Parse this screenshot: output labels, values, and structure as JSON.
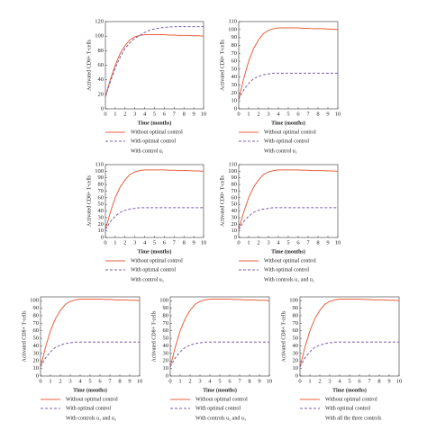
{
  "chart_data": [
    {
      "type": "line",
      "xlabel": "Time (months)",
      "ylabel": "Activated CD8+ T-cells",
      "caption": "With control u₁",
      "xlim": [
        0,
        10
      ],
      "xticks": [
        0,
        1,
        2,
        3,
        4,
        5,
        6,
        7,
        8,
        9,
        10
      ],
      "ylim": [
        0,
        120
      ],
      "yticks": [
        0,
        20,
        40,
        60,
        80,
        100,
        120
      ],
      "x": [
        0,
        0.5,
        1,
        1.5,
        2,
        2.5,
        3,
        3.5,
        4,
        4.5,
        5,
        5.5,
        6,
        6.5,
        7,
        7.5,
        8,
        8.5,
        9,
        9.5,
        10
      ],
      "series": [
        {
          "name": "Without optimal control",
          "color": "#e8603c",
          "line_style": "solid",
          "values": [
            17,
            40,
            60,
            76,
            87,
            95,
            99,
            101,
            102,
            102,
            102,
            102,
            102,
            101.5,
            101.5,
            101,
            101,
            101,
            100.5,
            100.5,
            100
          ]
        },
        {
          "name": "With optimal control",
          "color": "#7b5ea7",
          "line_style": "dashed",
          "values": [
            17,
            37,
            56,
            71,
            83,
            91,
            97,
            101,
            105,
            108,
            110,
            111,
            112,
            112.5,
            113,
            113,
            113,
            113,
            113,
            113,
            113
          ]
        }
      ]
    },
    {
      "type": "line",
      "xlabel": "Time (months)",
      "ylabel": "Activated CD8+ T-cells",
      "caption": "With control u₂",
      "xlim": [
        0,
        10
      ],
      "xticks": [
        0,
        1,
        2,
        3,
        4,
        5,
        6,
        7,
        8,
        9,
        10
      ],
      "ylim": [
        0,
        110
      ],
      "yticks": [
        0,
        10,
        20,
        30,
        40,
        50,
        60,
        70,
        80,
        90,
        100,
        110
      ],
      "x": [
        0,
        0.5,
        1,
        1.5,
        2,
        2.5,
        3,
        3.5,
        4,
        4.5,
        5,
        5.5,
        6,
        6.5,
        7,
        7.5,
        8,
        8.5,
        9,
        9.5,
        10
      ],
      "series": [
        {
          "name": "Without optimal control",
          "color": "#e8603c",
          "line_style": "solid",
          "values": [
            12,
            38,
            60,
            76,
            87,
            95,
            99,
            101,
            102,
            102,
            102,
            102,
            102,
            101.5,
            101.5,
            101,
            101,
            101,
            100.5,
            100.5,
            100
          ]
        },
        {
          "name": "With optimal control",
          "color": "#7b5ea7",
          "line_style": "dashed",
          "values": [
            12,
            24,
            32,
            38,
            41,
            43,
            44,
            45,
            45,
            45,
            45,
            45,
            45,
            45,
            45,
            45,
            45,
            45,
            45,
            45,
            45
          ]
        }
      ]
    },
    {
      "type": "line",
      "xlabel": "Time (months)",
      "ylabel": "Activated CD8+ T-cells",
      "caption": "With control u₃",
      "xlim": [
        0,
        10
      ],
      "xticks": [
        0,
        1,
        2,
        3,
        4,
        5,
        6,
        7,
        8,
        9,
        10
      ],
      "ylim": [
        0,
        110
      ],
      "yticks": [
        0,
        10,
        20,
        30,
        40,
        50,
        60,
        70,
        80,
        90,
        100,
        110
      ],
      "x": [
        0,
        0.5,
        1,
        1.5,
        2,
        2.5,
        3,
        3.5,
        4,
        4.5,
        5,
        5.5,
        6,
        6.5,
        7,
        7.5,
        8,
        8.5,
        9,
        9.5,
        10
      ],
      "series": [
        {
          "name": "Without optimal control",
          "color": "#e8603c",
          "line_style": "solid",
          "values": [
            12,
            38,
            60,
            76,
            87,
            95,
            99,
            101,
            102,
            102,
            102,
            102,
            102,
            101.5,
            101.5,
            101,
            101,
            101,
            100.5,
            100.5,
            100
          ]
        },
        {
          "name": "With optimal control",
          "color": "#7b5ea7",
          "line_style": "dashed",
          "values": [
            12,
            24,
            32,
            38,
            41,
            43,
            44,
            45,
            45,
            45,
            45,
            45,
            45,
            45,
            45,
            45,
            45,
            45,
            45,
            45,
            45
          ]
        }
      ]
    },
    {
      "type": "line",
      "xlabel": "Time (months)",
      "ylabel": "Activated CD8+ T-cells",
      "caption": "With controls u₁ and u₂",
      "xlim": [
        0,
        10
      ],
      "xticks": [
        0,
        1,
        2,
        3,
        4,
        5,
        6,
        7,
        8,
        9,
        10
      ],
      "ylim": [
        0,
        110
      ],
      "yticks": [
        0,
        10,
        20,
        30,
        40,
        50,
        60,
        70,
        80,
        90,
        100,
        110
      ],
      "x": [
        0,
        0.5,
        1,
        1.5,
        2,
        2.5,
        3,
        3.5,
        4,
        4.5,
        5,
        5.5,
        6,
        6.5,
        7,
        7.5,
        8,
        8.5,
        9,
        9.5,
        10
      ],
      "series": [
        {
          "name": "Without optimal control",
          "color": "#e8603c",
          "line_style": "solid",
          "values": [
            12,
            38,
            60,
            76,
            87,
            95,
            99,
            101,
            102,
            102,
            102,
            102,
            102,
            101.5,
            101.5,
            101,
            101,
            101,
            100.5,
            100.5,
            100
          ]
        },
        {
          "name": "With optimal control",
          "color": "#7b5ea7",
          "line_style": "dashed",
          "values": [
            12,
            24,
            32,
            38,
            41,
            43,
            44,
            45,
            45,
            45,
            45,
            45,
            45,
            45,
            45,
            45,
            45,
            45,
            45,
            45,
            45
          ]
        }
      ]
    },
    {
      "type": "line",
      "xlabel": "Time (months)",
      "ylabel": "Activated CD8+ T-cells",
      "caption": "With controls u₁ and u₃",
      "xlim": [
        0,
        10
      ],
      "xticks": [
        0,
        1,
        2,
        3,
        4,
        5,
        6,
        7,
        8,
        9,
        10
      ],
      "ylim": [
        0,
        105
      ],
      "yticks": [
        0,
        10,
        20,
        30,
        40,
        50,
        60,
        70,
        80,
        90,
        100
      ],
      "x": [
        0,
        0.5,
        1,
        1.5,
        2,
        2.5,
        3,
        3.5,
        4,
        4.5,
        5,
        5.5,
        6,
        6.5,
        7,
        7.5,
        8,
        8.5,
        9,
        9.5,
        10
      ],
      "series": [
        {
          "name": "Without optimal control",
          "color": "#e8603c",
          "line_style": "solid",
          "values": [
            12,
            38,
            60,
            76,
            87,
            95,
            99,
            101,
            102,
            102,
            102,
            102,
            102,
            101.5,
            101.5,
            101,
            101,
            101,
            100.5,
            100.5,
            100
          ]
        },
        {
          "name": "With optimal control",
          "color": "#7b5ea7",
          "line_style": "dashed",
          "values": [
            12,
            24,
            32,
            38,
            41,
            43,
            44,
            45,
            45,
            45,
            45,
            45,
            45,
            45,
            45,
            45,
            45,
            45,
            45,
            45,
            45
          ]
        }
      ]
    },
    {
      "type": "line",
      "xlabel": "Time (months)",
      "ylabel": "Activated CD8+ T-cells",
      "caption": "With controls u₂ and u₃",
      "xlim": [
        0,
        10
      ],
      "xticks": [
        0,
        1,
        2,
        3,
        4,
        5,
        6,
        7,
        8,
        9,
        10
      ],
      "ylim": [
        0,
        105
      ],
      "yticks": [
        0,
        10,
        20,
        30,
        40,
        50,
        60,
        70,
        80,
        90,
        100
      ],
      "x": [
        0,
        0.5,
        1,
        1.5,
        2,
        2.5,
        3,
        3.5,
        4,
        4.5,
        5,
        5.5,
        6,
        6.5,
        7,
        7.5,
        8,
        8.5,
        9,
        9.5,
        10
      ],
      "series": [
        {
          "name": "Without optimal control",
          "color": "#e8603c",
          "line_style": "solid",
          "values": [
            12,
            38,
            60,
            76,
            87,
            95,
            99,
            101,
            102,
            102,
            102,
            102,
            102,
            101.5,
            101.5,
            101,
            101,
            101,
            100.5,
            100.5,
            100
          ]
        },
        {
          "name": "With optimal control",
          "color": "#7b5ea7",
          "line_style": "dashed",
          "values": [
            12,
            24,
            32,
            38,
            41,
            43,
            44,
            45,
            45,
            45,
            45,
            45,
            45,
            45,
            45,
            45,
            45,
            45,
            45,
            45,
            45
          ]
        }
      ]
    },
    {
      "type": "line",
      "xlabel": "Time (months)",
      "ylabel": "Activated CD8+ T-cells",
      "caption": "With all the three controls",
      "xlim": [
        0,
        10
      ],
      "xticks": [
        0,
        1,
        2,
        3,
        4,
        5,
        6,
        7,
        8,
        9,
        10
      ],
      "ylim": [
        0,
        105
      ],
      "yticks": [
        0,
        10,
        20,
        30,
        40,
        50,
        60,
        70,
        80,
        90,
        100
      ],
      "x": [
        0,
        0.5,
        1,
        1.5,
        2,
        2.5,
        3,
        3.5,
        4,
        4.5,
        5,
        5.5,
        6,
        6.5,
        7,
        7.5,
        8,
        8.5,
        9,
        9.5,
        10
      ],
      "series": [
        {
          "name": "Without optimal control",
          "color": "#e8603c",
          "line_style": "solid",
          "values": [
            12,
            38,
            60,
            76,
            87,
            95,
            99,
            101,
            102,
            102,
            102,
            102,
            102,
            101.5,
            101.5,
            101,
            101,
            101,
            100.5,
            100.5,
            100
          ]
        },
        {
          "name": "With optimal control",
          "color": "#7b5ea7",
          "line_style": "dashed",
          "values": [
            12,
            24,
            32,
            38,
            41,
            43,
            44,
            45,
            45,
            45,
            45,
            45,
            45,
            45,
            45,
            45,
            45,
            45,
            45,
            45,
            45
          ]
        }
      ]
    }
  ]
}
